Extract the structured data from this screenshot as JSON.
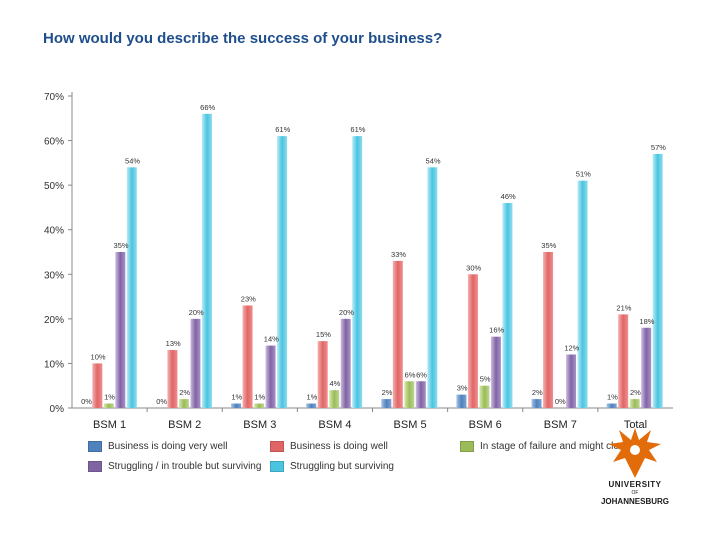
{
  "title": "How would you describe the success of your business?",
  "chart_data": {
    "type": "bar",
    "categories": [
      "BSM 1",
      "BSM 2",
      "BSM 3",
      "BSM 4",
      "BSM 5",
      "BSM 6",
      "BSM 7",
      "Total"
    ],
    "ylim": [
      0,
      70
    ],
    "yticks": [
      "0%",
      "10%",
      "20%",
      "30%",
      "40%",
      "50%",
      "60%",
      "70%"
    ],
    "grid": false,
    "legend_position": "bottom",
    "series": [
      {
        "name": "Business is doing very well",
        "color": "#4f81bd",
        "values": [
          0,
          0,
          1,
          1,
          2,
          3,
          2,
          1
        ],
        "labels": [
          "0%",
          "0%",
          "1%",
          "1%",
          "2%",
          "3%",
          "2%",
          "1%"
        ]
      },
      {
        "name": "Business is doing well",
        "color": "#e06666",
        "values": [
          10,
          13,
          23,
          15,
          33,
          30,
          35,
          21
        ],
        "labels": [
          "10%",
          "13%",
          "23%",
          "15%",
          "33%",
          "30%",
          "35%",
          "21%"
        ]
      },
      {
        "name": "In stage of failure and might close",
        "color": "#9bbb59",
        "values": [
          1,
          2,
          1,
          4,
          6,
          5,
          0,
          2
        ],
        "labels": [
          "1%",
          "2%",
          "1%",
          "4%",
          "6%",
          "5%",
          "0%",
          "2%"
        ]
      },
      {
        "name": "Struggling / in trouble but surviving",
        "color": "#8064a2",
        "values": [
          35,
          20,
          14,
          20,
          6,
          16,
          12,
          18
        ],
        "labels": [
          "35%",
          "20%",
          "14%",
          "20%",
          "6%",
          "16%",
          "12%",
          "18%"
        ]
      },
      {
        "name": "Struggling but surviving",
        "color": "#4bc4e0",
        "values": [
          54,
          66,
          61,
          61,
          54,
          46,
          51,
          57
        ],
        "labels": [
          "54%",
          "66%",
          "61%",
          "61%",
          "54%",
          "46%",
          "51%",
          "57%"
        ]
      }
    ]
  },
  "logo": {
    "line1": "UNIVERSITY",
    "line2": "OF",
    "line3": "JOHANNESBURG",
    "color": "#e36c0a"
  }
}
